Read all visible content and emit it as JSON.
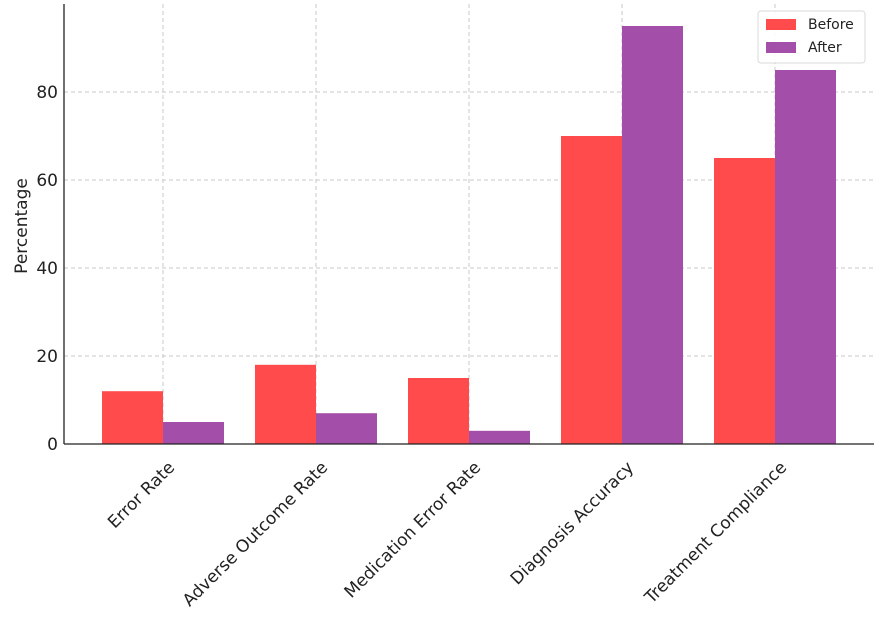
{
  "chart_data": {
    "type": "bar",
    "categories": [
      "Error Rate",
      "Adverse Outcome Rate",
      "Medication Error Rate",
      "Diagnosis Accuracy",
      "Treatment Compliance"
    ],
    "series": [
      {
        "name": "Before",
        "color": "#ff4b4b",
        "values": [
          12,
          18,
          15,
          70,
          65
        ]
      },
      {
        "name": "After",
        "color": "#a34ea8",
        "values": [
          5,
          7,
          3,
          95,
          85
        ]
      }
    ],
    "title": "",
    "xlabel": "",
    "ylabel": "Percentage",
    "ylim": [
      0,
      100
    ],
    "yticks": [
      "0",
      "20",
      "40",
      "60",
      "80"
    ],
    "grid": true,
    "legend_position": "top-right"
  }
}
